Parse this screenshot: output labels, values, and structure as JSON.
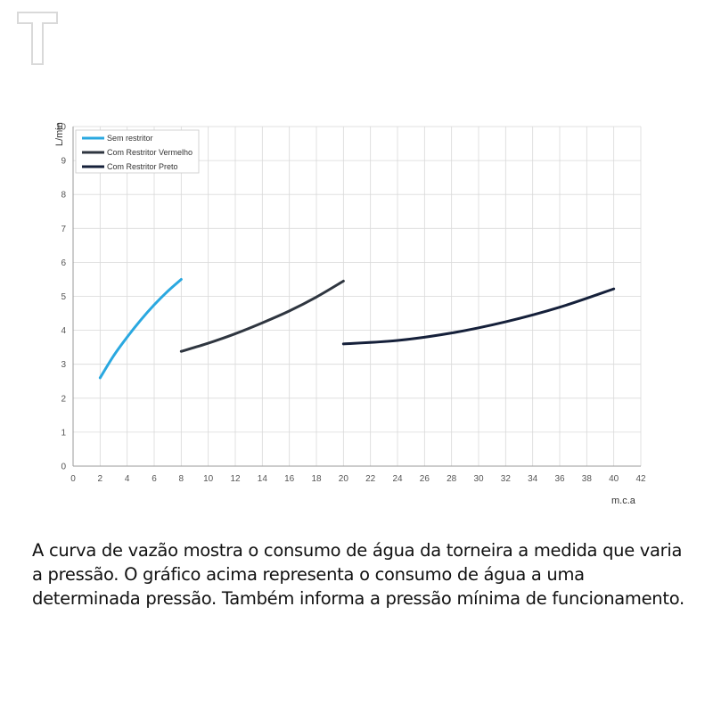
{
  "logo": {
    "icon": "t-logo-icon",
    "color": "#d9d9d9"
  },
  "caption": "A curva de vazão mostra o consumo de água da torneira a medida que varia a pressão. O gráfico acima representa o consumo de água a uma determinada pressão. Também informa a pressão mínima de funcionamento.",
  "chart_data": {
    "type": "line",
    "title": "",
    "xlabel": "m.c.a",
    "ylabel": "L/min",
    "xlim": [
      0,
      42
    ],
    "ylim": [
      0,
      10
    ],
    "xticks": [
      0,
      2,
      4,
      6,
      8,
      10,
      12,
      14,
      16,
      18,
      20,
      22,
      24,
      26,
      28,
      30,
      32,
      34,
      36,
      38,
      40,
      42
    ],
    "yticks": [
      0,
      1,
      2,
      3,
      4,
      5,
      6,
      7,
      8,
      9,
      10
    ],
    "grid": true,
    "legend_position": "top-left",
    "series": [
      {
        "name": "Sem restritor",
        "color": "#2aa8e0",
        "x": [
          2,
          3,
          4,
          5,
          6,
          7,
          8
        ],
        "y": [
          2.6,
          3.25,
          3.8,
          4.3,
          4.75,
          5.15,
          5.5
        ]
      },
      {
        "name": "Com Restritor Vermelho",
        "color": "#2f3640",
        "x": [
          8,
          10,
          12,
          14,
          16,
          18,
          20
        ],
        "y": [
          3.38,
          3.62,
          3.9,
          4.22,
          4.57,
          4.98,
          5.45
        ]
      },
      {
        "name": "Com Restritor Preto",
        "color": "#15203a",
        "x": [
          20,
          24,
          28,
          32,
          36,
          40
        ],
        "y": [
          3.6,
          3.7,
          3.92,
          4.25,
          4.68,
          5.22
        ]
      }
    ]
  }
}
